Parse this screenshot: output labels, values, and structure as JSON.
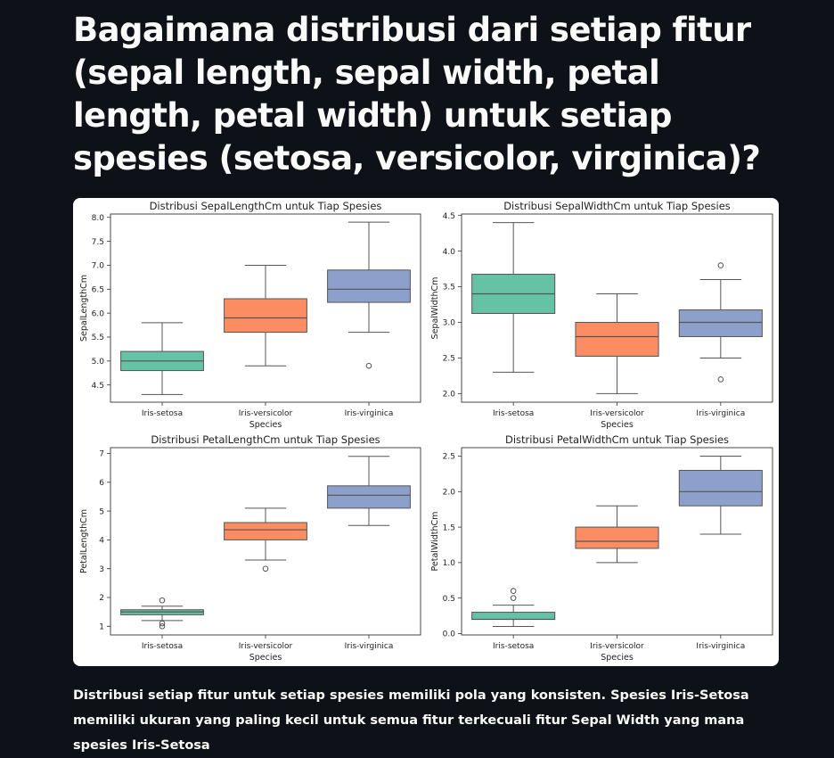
{
  "page": {
    "heading": "Bagaimana distribusi dari setiap fitur (sepal length, sepal width, petal length, petal width) untuk setiap spesies (setosa, versicolor, virginica)?",
    "caption": "Distribusi setiap fitur untuk setiap spesies memiliki pola yang konsisten. Spesies Iris-Setosa memiliki ukuran yang paling kecil untuk semua fitur terkecuali fitur Sepal Width yang mana spesies Iris-Setosa"
  },
  "colors": {
    "background": "#0e1117",
    "Iris-setosa": "#66c2a5",
    "Iris-versicolor": "#fc8d62",
    "Iris-virginica": "#8da0cb"
  },
  "chart_data": [
    {
      "type": "box",
      "title": "Distribusi SepalLengthCm untuk Tiap Spesies",
      "xlabel": "Species",
      "ylabel": "SepalLengthCm",
      "categories": [
        "Iris-setosa",
        "Iris-versicolor",
        "Iris-virginica"
      ],
      "ylim": [
        4.14,
        8.07
      ],
      "yticks": [
        4.5,
        5.0,
        5.5,
        6.0,
        6.5,
        7.0,
        7.5,
        8.0
      ],
      "ytick_labels": [
        "4.5",
        "5.0",
        "5.5",
        "6.0",
        "6.5",
        "7.0",
        "7.5",
        "8.0"
      ],
      "boxes": [
        {
          "whislo": 4.3,
          "q1": 4.8,
          "med": 5.0,
          "q3": 5.2,
          "whishi": 5.8,
          "fliers": []
        },
        {
          "whislo": 4.9,
          "q1": 5.6,
          "med": 5.9,
          "q3": 6.3,
          "whishi": 7.0,
          "fliers": []
        },
        {
          "whislo": 5.6,
          "q1": 6.225,
          "med": 6.5,
          "q3": 6.9,
          "whishi": 7.9,
          "fliers": [
            4.9
          ]
        }
      ]
    },
    {
      "type": "box",
      "title": "Distribusi SepalWidthCm untuk Tiap Spesies",
      "xlabel": "Species",
      "ylabel": "SepalWidthCm",
      "categories": [
        "Iris-setosa",
        "Iris-versicolor",
        "Iris-virginica"
      ],
      "ylim": [
        1.88,
        4.52
      ],
      "yticks": [
        2.0,
        2.5,
        3.0,
        3.5,
        4.0,
        4.5
      ],
      "ytick_labels": [
        "2.0",
        "2.5",
        "3.0",
        "3.5",
        "4.0",
        "4.5"
      ],
      "boxes": [
        {
          "whislo": 2.3,
          "q1": 3.125,
          "med": 3.4,
          "q3": 3.675,
          "whishi": 4.4,
          "fliers": []
        },
        {
          "whislo": 2.0,
          "q1": 2.525,
          "med": 2.8,
          "q3": 3.0,
          "whishi": 3.4,
          "fliers": []
        },
        {
          "whislo": 2.5,
          "q1": 2.8,
          "med": 3.0,
          "q3": 3.175,
          "whishi": 3.6,
          "fliers": [
            3.8,
            2.2
          ]
        }
      ]
    },
    {
      "type": "box",
      "title": "Distribusi PetalLengthCm untuk Tiap Spesies",
      "xlabel": "Species",
      "ylabel": "PetalLengthCm",
      "categories": [
        "Iris-setosa",
        "Iris-versicolor",
        "Iris-virginica"
      ],
      "ylim": [
        0.7,
        7.2
      ],
      "yticks": [
        1,
        2,
        3,
        4,
        5,
        6,
        7
      ],
      "ytick_labels": [
        "1",
        "2",
        "3",
        "4",
        "5",
        "6",
        "7"
      ],
      "boxes": [
        {
          "whislo": 1.2,
          "q1": 1.4,
          "med": 1.5,
          "q3": 1.575,
          "whishi": 1.7,
          "fliers": [
            1.9,
            1.1,
            1.0
          ]
        },
        {
          "whislo": 3.3,
          "q1": 4.0,
          "med": 4.35,
          "q3": 4.6,
          "whishi": 5.1,
          "fliers": [
            3.0
          ]
        },
        {
          "whislo": 4.5,
          "q1": 5.1,
          "med": 5.55,
          "q3": 5.875,
          "whishi": 6.9,
          "fliers": []
        }
      ]
    },
    {
      "type": "box",
      "title": "Distribusi PetalWidthCm untuk Tiap Spesies",
      "xlabel": "Species",
      "ylabel": "PetalWidthCm",
      "categories": [
        "Iris-setosa",
        "Iris-versicolor",
        "Iris-virginica"
      ],
      "ylim": [
        -0.02,
        2.62
      ],
      "yticks": [
        0.0,
        0.5,
        1.0,
        1.5,
        2.0,
        2.5
      ],
      "ytick_labels": [
        "0.0",
        "0.5",
        "1.0",
        "1.5",
        "2.0",
        "2.5"
      ],
      "boxes": [
        {
          "whislo": 0.1,
          "q1": 0.2,
          "med": 0.2,
          "q3": 0.3,
          "whishi": 0.4,
          "fliers": [
            0.6,
            0.5
          ]
        },
        {
          "whislo": 1.0,
          "q1": 1.2,
          "med": 1.3,
          "q3": 1.5,
          "whishi": 1.8,
          "fliers": []
        },
        {
          "whislo": 1.4,
          "q1": 1.8,
          "med": 2.0,
          "q3": 2.3,
          "whishi": 2.5,
          "fliers": []
        }
      ]
    }
  ]
}
